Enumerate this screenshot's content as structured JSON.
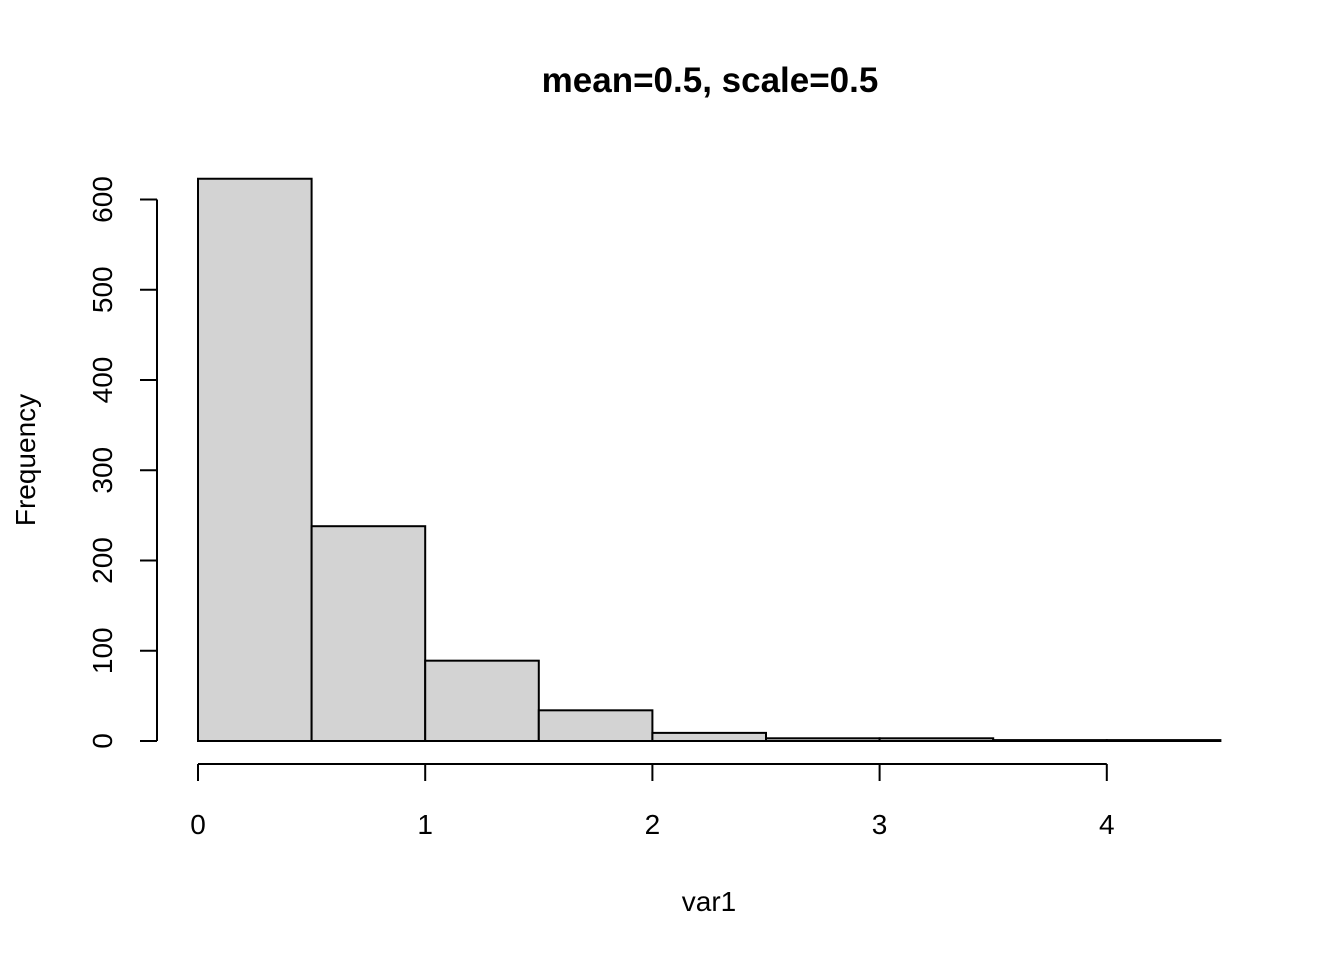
{
  "chart_data": {
    "type": "bar",
    "title": "mean=0.5, scale=0.5",
    "xlabel": "var1",
    "ylabel": "Frequency",
    "bins": [
      {
        "from": 0.0,
        "to": 0.5,
        "count": 623
      },
      {
        "from": 0.5,
        "to": 1.0,
        "count": 238
      },
      {
        "from": 1.0,
        "to": 1.5,
        "count": 89
      },
      {
        "from": 1.5,
        "to": 2.0,
        "count": 34
      },
      {
        "from": 2.0,
        "to": 2.5,
        "count": 9
      },
      {
        "from": 2.5,
        "to": 3.0,
        "count": 3
      },
      {
        "from": 3.0,
        "to": 3.5,
        "count": 3
      },
      {
        "from": 3.5,
        "to": 4.0,
        "count": 1
      },
      {
        "from": 4.0,
        "to": 4.5,
        "count": 1
      }
    ],
    "xlim": [
      0,
      4.5
    ],
    "ylim": [
      0,
      623
    ],
    "x_ticks": [
      "0",
      "1",
      "2",
      "3",
      "4"
    ],
    "y_ticks": [
      "0",
      "100",
      "200",
      "300",
      "400",
      "500",
      "600"
    ],
    "bar_color": "#d3d3d3",
    "grid": false
  }
}
